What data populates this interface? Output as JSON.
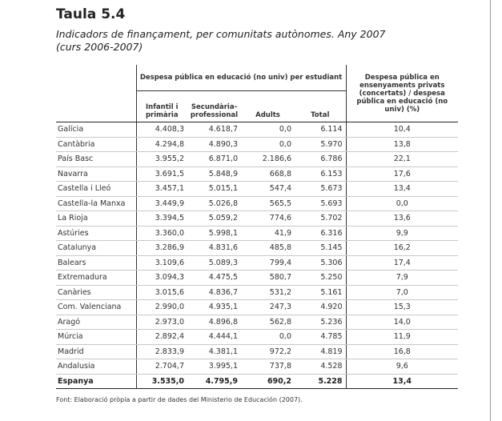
{
  "title": "Taula 5.4",
  "subtitle": "Indicadors de finançament, per comunitats autònomes. Any 2007 (curs 2006-2007)",
  "header": {
    "group_public": "Despesa pública en educació (no univ) per estudiant",
    "col_infantil": "Infantil i primària",
    "col_secundaria": "Secundària-professional",
    "col_adults": "Adults",
    "col_total": "Total",
    "col_private": "Despesa pública en ensenyaments privats (concertats) / despesa pública en educació (no univ) (%)"
  },
  "rows": [
    {
      "region": "Galícia",
      "infantil": "4.408,3",
      "secundaria": "4.618,7",
      "adults": "0,0",
      "total": "6.114",
      "privat": "10,4"
    },
    {
      "region": "Cantàbria",
      "infantil": "4.294,8",
      "secundaria": "4.890,3",
      "adults": "0,0",
      "total": "5.970",
      "privat": "13,8"
    },
    {
      "region": "País Basc",
      "infantil": "3.955,2",
      "secundaria": "6.871,0",
      "adults": "2.186,6",
      "total": "6.786",
      "privat": "22,1"
    },
    {
      "region": "Navarra",
      "infantil": "3.691,5",
      "secundaria": "5.848,9",
      "adults": "668,8",
      "total": "6.153",
      "privat": "17,6"
    },
    {
      "region": "Castella i Lleó",
      "infantil": "3.457,1",
      "secundaria": "5.015,1",
      "adults": "547,4",
      "total": "5.673",
      "privat": "13,4"
    },
    {
      "region": "Castella-la Manxa",
      "infantil": "3.449,9",
      "secundaria": "5.026,8",
      "adults": "565,5",
      "total": "5.693",
      "privat": "0,0"
    },
    {
      "region": "La Rioja",
      "infantil": "3.394,5",
      "secundaria": "5.059,2",
      "adults": "774,6",
      "total": "5.702",
      "privat": "13,6"
    },
    {
      "region": "Astúries",
      "infantil": "3.360,0",
      "secundaria": "5.998,1",
      "adults": "41,9",
      "total": "6.316",
      "privat": "9,9"
    },
    {
      "region": "Catalunya",
      "infantil": "3.286,9",
      "secundaria": "4.831,6",
      "adults": "485,8",
      "total": "5.145",
      "privat": "16,2"
    },
    {
      "region": "Balears",
      "infantil": "3.109,6",
      "secundaria": "5.089,3",
      "adults": "799,4",
      "total": "5.306",
      "privat": "17,4"
    },
    {
      "region": "Extremadura",
      "infantil": "3.094,3",
      "secundaria": "4.475,5",
      "adults": "580,7",
      "total": "5.250",
      "privat": "7,9"
    },
    {
      "region": "Canàries",
      "infantil": "3.015,6",
      "secundaria": "4.836,7",
      "adults": "531,2",
      "total": "5.161",
      "privat": "7,0"
    },
    {
      "region": "Com. Valenciana",
      "infantil": "2.990,0",
      "secundaria": "4.935,1",
      "adults": "247,3",
      "total": "4.920",
      "privat": "15,3"
    },
    {
      "region": "Aragó",
      "infantil": "2.973,0",
      "secundaria": "4.896,8",
      "adults": "562,8",
      "total": "5.236",
      "privat": "14,0"
    },
    {
      "region": "Múrcia",
      "infantil": "2.892,4",
      "secundaria": "4.444,1",
      "adults": "0,0",
      "total": "4.785",
      "privat": "11,9"
    },
    {
      "region": "Madrid",
      "infantil": "2.833,9",
      "secundaria": "4.381,1",
      "adults": "972,2",
      "total": "4.819",
      "privat": "16,8"
    },
    {
      "region": "Andalusia",
      "infantil": "2.704,7",
      "secundaria": "3.995,1",
      "adults": "737,8",
      "total": "4.528",
      "privat": "9,6"
    }
  ],
  "total_row": {
    "region": "Espanya",
    "infantil": "3.535,0",
    "secundaria": "4.795,9",
    "adults": "690,2",
    "total": "5.228",
    "privat": "13,4"
  },
  "footnote": "Font: Elaboració pròpia a partir de dades del Ministerio de Educación (2007)."
}
